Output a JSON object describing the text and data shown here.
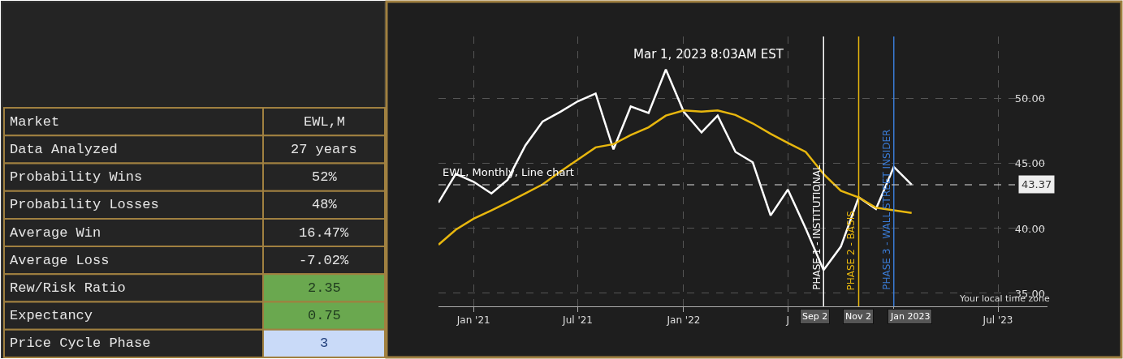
{
  "chart_data": [
    {
      "type": "other",
      "y_categories": [
        "Market",
        "Data Analyzed",
        "Probability Wins",
        "Probability Losses",
        "Average Win",
        "Average Loss",
        "Rew/Risk Ratio",
        "Expectancy",
        "Price Cycle Phase"
      ],
      "cell_labels": [
        [
          "EWL,M"
        ],
        [
          "27 years"
        ],
        [
          "52%"
        ],
        [
          "48%"
        ],
        [
          "16.47%"
        ],
        [
          "-7.02%"
        ],
        [
          "2.35"
        ],
        [
          "0.75"
        ],
        [
          "3"
        ]
      ],
      "colors": [
        null,
        null,
        null,
        null,
        null,
        null,
        "#6aa84f",
        "#6aa84f",
        "#c9daf8"
      ]
    },
    {
      "type": "line",
      "title": "Mar 1, 2023 8:03AM EST",
      "subtitle": "EWL, Monthly, Line chart",
      "x": [
        "2020-11",
        "2020-12",
        "2021-01",
        "2021-02",
        "2021-03",
        "2021-04",
        "2021-05",
        "2021-06",
        "2021-07",
        "2021-08",
        "2021-09",
        "2021-10",
        "2021-11",
        "2021-12",
        "2022-01",
        "2022-02",
        "2022-03",
        "2022-04",
        "2022-05",
        "2022-06",
        "2022-07",
        "2022-08",
        "2022-09",
        "2022-10",
        "2022-11",
        "2022-12",
        "2023-01",
        "2023-02"
      ],
      "series": [
        {
          "color": "#ffffff",
          "values": [
            42.0,
            44.2,
            43.6,
            42.7,
            43.75,
            46.4,
            48.25,
            49.0,
            49.8,
            50.4,
            46.1,
            49.4,
            48.9,
            52.25,
            49.0,
            47.4,
            48.7,
            45.9,
            45.1,
            41.0,
            43.0,
            40.0,
            36.8,
            38.6,
            42.4,
            41.5,
            44.75,
            43.37
          ]
        },
        {
          "color": "#e8b70e",
          "values": [
            38.75,
            39.9,
            40.75,
            41.4,
            42.0,
            42.7,
            43.4,
            44.4,
            45.3,
            46.25,
            46.5,
            47.2,
            47.8,
            48.7,
            49.1,
            49.0,
            49.1,
            48.75,
            48.1,
            47.3,
            46.6,
            45.9,
            44.2,
            42.9,
            42.4,
            41.6,
            41.4,
            41.2
          ]
        }
      ],
      "xlim": [
        "2020-11-01",
        "2023-09-25"
      ],
      "xticks": [
        {
          "value": "2021-01-01",
          "label": "Jan '21"
        },
        {
          "value": "2021-07-01",
          "label": "Jul '21"
        },
        {
          "value": "2022-01-01",
          "label": "Jan '22"
        },
        {
          "value": "2022-07-01",
          "label": "J"
        },
        {
          "value": "2023-01-01",
          "label": null
        },
        {
          "value": "2023-07-01",
          "label": "Jul '23"
        }
      ],
      "ylim": [
        34.0,
        54.8
      ],
      "yticks": [
        {
          "value": 35,
          "label": "35.00"
        },
        {
          "value": 40,
          "label": "40.00"
        },
        {
          "value": 45,
          "label": "45.00"
        },
        {
          "value": 50,
          "label": "50.00"
        }
      ],
      "ref_lines": [
        {
          "axis": "x",
          "value": "2022-09-01",
          "label": "PHASE 1 - INSTITUTIONAL",
          "color": "#ffffff",
          "line_style": "solid"
        },
        {
          "axis": "x",
          "value": "2022-11-01",
          "label": "PHASE 2 - BASIS",
          "color": "#e8b70e",
          "line_style": "solid"
        },
        {
          "axis": "x",
          "value": "2023-01-01",
          "label": "PHASE 3 - WALL STREET INSIDER",
          "color": "#3a7bd5",
          "line_style": "solid"
        },
        {
          "axis": "y",
          "value": 43.37,
          "label": "43.37",
          "color": "#dddddd",
          "line_style": "dashed"
        }
      ],
      "annotations": [
        "Sep 2",
        "Nov 2",
        "Jan 2023",
        "Your local time zone"
      ],
      "grid": true,
      "line_style": "solid",
      "marker": "none"
    }
  ]
}
